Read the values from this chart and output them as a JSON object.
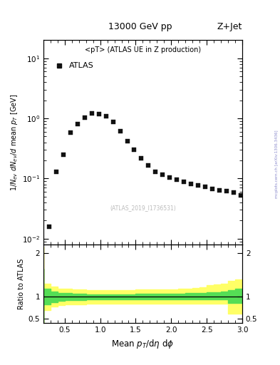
{
  "title_center": "13000 GeV pp",
  "title_right": "Z+Jet",
  "legend_label": "<pT> (ATLAS UE in Z production)",
  "atlas_label": "ATLAS",
  "watermark": "(ATLAS_2019_I1736531)",
  "side_text": "mcplots.cern.ch [arXiv:1306.3436]",
  "ylabel_main": "1/N$_{ev}$ dN$_{ev}$/d mean p$_T$ [GeV]",
  "ylabel_ratio": "Ratio to ATLAS",
  "data_x": [
    0.28,
    0.38,
    0.48,
    0.58,
    0.68,
    0.78,
    0.88,
    0.98,
    1.08,
    1.18,
    1.28,
    1.38,
    1.48,
    1.58,
    1.68,
    1.78,
    1.88,
    1.98,
    2.08,
    2.18,
    2.28,
    2.38,
    2.48,
    2.58,
    2.68,
    2.78,
    2.88,
    2.98
  ],
  "data_y": [
    0.016,
    0.13,
    0.25,
    0.58,
    0.8,
    1.02,
    1.2,
    1.18,
    1.08,
    0.88,
    0.62,
    0.42,
    0.3,
    0.22,
    0.165,
    0.13,
    0.115,
    0.105,
    0.095,
    0.088,
    0.082,
    0.076,
    0.072,
    0.068,
    0.064,
    0.061,
    0.058,
    0.052
  ],
  "xlim": [
    0.2,
    3.0
  ],
  "ylim_main": [
    0.008,
    20.0
  ],
  "ylim_ratio": [
    0.4,
    2.2
  ],
  "green_band_x": [
    0.2,
    0.3,
    0.4,
    0.5,
    0.6,
    0.7,
    0.8,
    0.9,
    1.0,
    1.1,
    1.2,
    1.3,
    1.4,
    1.5,
    1.6,
    1.7,
    1.8,
    1.9,
    2.0,
    2.1,
    2.2,
    2.3,
    2.4,
    2.5,
    2.6,
    2.7,
    2.8,
    2.9,
    3.0
  ],
  "green_band_lo": [
    0.4,
    0.82,
    0.88,
    0.91,
    0.92,
    0.93,
    0.93,
    0.94,
    0.94,
    0.94,
    0.94,
    0.94,
    0.94,
    0.94,
    0.94,
    0.94,
    0.94,
    0.94,
    0.94,
    0.94,
    0.94,
    0.94,
    0.94,
    0.94,
    0.94,
    0.94,
    0.94,
    0.86,
    0.86
  ],
  "green_band_hi": [
    1.65,
    1.18,
    1.12,
    1.09,
    1.08,
    1.07,
    1.07,
    1.06,
    1.06,
    1.06,
    1.06,
    1.06,
    1.06,
    1.06,
    1.07,
    1.07,
    1.07,
    1.07,
    1.07,
    1.07,
    1.07,
    1.08,
    1.08,
    1.09,
    1.1,
    1.11,
    1.12,
    1.16,
    1.18
  ],
  "yellow_band_lo": [
    0.38,
    0.7,
    0.77,
    0.81,
    0.82,
    0.83,
    0.83,
    0.84,
    0.84,
    0.84,
    0.84,
    0.84,
    0.84,
    0.84,
    0.84,
    0.84,
    0.84,
    0.84,
    0.84,
    0.84,
    0.84,
    0.84,
    0.84,
    0.84,
    0.84,
    0.84,
    0.84,
    0.62,
    0.62
  ],
  "yellow_band_hi": [
    2.15,
    1.3,
    1.23,
    1.19,
    1.18,
    1.17,
    1.17,
    1.16,
    1.16,
    1.16,
    1.16,
    1.16,
    1.16,
    1.16,
    1.17,
    1.17,
    1.17,
    1.17,
    1.17,
    1.17,
    1.18,
    1.19,
    1.2,
    1.22,
    1.26,
    1.29,
    1.3,
    1.36,
    1.4
  ],
  "marker_color": "#111111",
  "marker_size": 4.5,
  "green_color": "#55dd55",
  "yellow_color": "#ffff66",
  "bg_color": "#ffffff"
}
